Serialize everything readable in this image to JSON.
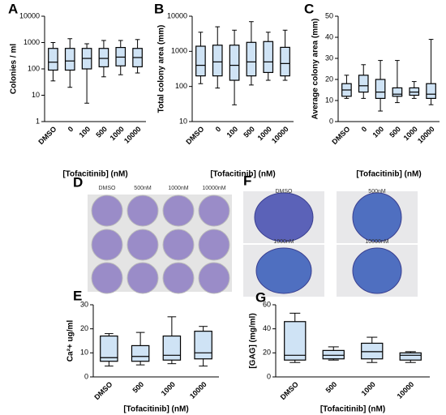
{
  "chart_data": [
    {
      "type": "box",
      "panel": "A",
      "y_label": "Colonies / ml",
      "x_label": "[Tofacitinib] (nM)",
      "log": true,
      "categories": [
        "DMSO",
        "0",
        "100",
        "500",
        "1000",
        "10000"
      ],
      "color": "#cfe3f5",
      "ylim": [
        1,
        10000
      ],
      "yticks": [
        1,
        10,
        100,
        1000,
        10000
      ],
      "boxes": [
        {
          "min": 35,
          "q1": 90,
          "median": 180,
          "q3": 600,
          "max": 1000
        },
        {
          "min": 20,
          "q1": 90,
          "median": 200,
          "q3": 600,
          "max": 1400
        },
        {
          "min": 5,
          "q1": 100,
          "median": 250,
          "q3": 600,
          "max": 900
        },
        {
          "min": 50,
          "q1": 120,
          "median": 250,
          "q3": 600,
          "max": 1200
        },
        {
          "min": 60,
          "q1": 130,
          "median": 280,
          "q3": 650,
          "max": 1200
        },
        {
          "min": 70,
          "q1": 120,
          "median": 270,
          "q3": 600,
          "max": 1300
        }
      ]
    },
    {
      "type": "box",
      "panel": "B",
      "y_label": "Total colony area (mm)",
      "x_label": "[Tofacitinib] (nM)",
      "log": true,
      "categories": [
        "DMSO",
        "0",
        "100",
        "500",
        "1000",
        "10000"
      ],
      "color": "#cfe3f5",
      "ylim": [
        10,
        10000
      ],
      "yticks": [
        10,
        100,
        1000,
        10000
      ],
      "boxes": [
        {
          "min": 120,
          "q1": 200,
          "median": 400,
          "q3": 1400,
          "max": 3500
        },
        {
          "min": 90,
          "q1": 200,
          "median": 500,
          "q3": 1500,
          "max": 5000
        },
        {
          "min": 30,
          "q1": 150,
          "median": 400,
          "q3": 1500,
          "max": 4000
        },
        {
          "min": 110,
          "q1": 200,
          "median": 500,
          "q3": 1800,
          "max": 7000
        },
        {
          "min": 150,
          "q1": 250,
          "median": 500,
          "q3": 1900,
          "max": 3500
        },
        {
          "min": 150,
          "q1": 200,
          "median": 450,
          "q3": 1300,
          "max": 4000
        }
      ]
    },
    {
      "type": "box",
      "panel": "C",
      "y_label": "Average colony area (mm)",
      "x_label": "[Tofacitinib] (nM)",
      "log": false,
      "categories": [
        "DMSO",
        "0",
        "100",
        "500",
        "1000",
        "10000"
      ],
      "color": "#cfe3f5",
      "ylim": [
        0,
        50
      ],
      "yticks": [
        0,
        10,
        20,
        30,
        40,
        50
      ],
      "boxes": [
        {
          "min": 11,
          "q1": 12,
          "median": 15,
          "q3": 18,
          "max": 22
        },
        {
          "min": 11,
          "q1": 14,
          "median": 17,
          "q3": 22,
          "max": 27
        },
        {
          "min": 5,
          "q1": 11,
          "median": 14,
          "q3": 20,
          "max": 29
        },
        {
          "min": 9,
          "q1": 12,
          "median": 13,
          "q3": 16,
          "max": 29
        },
        {
          "min": 11,
          "q1": 12.5,
          "median": 14,
          "q3": 16,
          "max": 19
        },
        {
          "min": 8,
          "q1": 11,
          "median": 13,
          "q3": 18,
          "max": 39
        }
      ]
    },
    {
      "type": "box",
      "panel": "E",
      "y_label": "Ca²+ ug/ml",
      "x_label": "[Tofacitinib] (nM)",
      "log": false,
      "categories": [
        "DMSO",
        "500",
        "1000",
        "10000"
      ],
      "color": "#cfe3f5",
      "ylim": [
        0,
        30
      ],
      "yticks": [
        0,
        10,
        20,
        30
      ],
      "boxes": [
        {
          "min": 4.5,
          "q1": 6.5,
          "median": 8,
          "q3": 17,
          "max": 18
        },
        {
          "min": 5,
          "q1": 6.5,
          "median": 8.5,
          "q3": 13,
          "max": 18.5
        },
        {
          "min": 5.5,
          "q1": 7,
          "median": 9,
          "q3": 17,
          "max": 25
        },
        {
          "min": 4.5,
          "q1": 7.5,
          "median": 10,
          "q3": 19,
          "max": 21
        }
      ]
    },
    {
      "type": "box",
      "panel": "G",
      "y_label": "[GAG] (mg/ml)",
      "x_label": "[Tofacitinib] (nM)",
      "log": false,
      "categories": [
        "DMSO",
        "500",
        "1000",
        "10000"
      ],
      "color": "#cfe3f5",
      "ylim": [
        0,
        60
      ],
      "yticks": [
        0,
        20,
        40,
        60
      ],
      "boxes": [
        {
          "min": 12,
          "q1": 14,
          "median": 18,
          "q3": 46,
          "max": 53
        },
        {
          "min": 14,
          "q1": 15,
          "median": 18,
          "q3": 22,
          "max": 25
        },
        {
          "min": 12,
          "q1": 15,
          "median": 21,
          "q3": 28,
          "max": 33
        },
        {
          "min": 12,
          "q1": 14,
          "median": 18,
          "q3": 20,
          "max": 21
        }
      ]
    }
  ],
  "photo_panels": [
    {
      "panel": "D",
      "labels": [
        "DMSO",
        "500nM",
        "1000nM",
        "10000nM"
      ]
    },
    {
      "panel": "F",
      "labels": [
        "DMSO",
        "500nM",
        "1000nM",
        "10000nM"
      ]
    }
  ]
}
